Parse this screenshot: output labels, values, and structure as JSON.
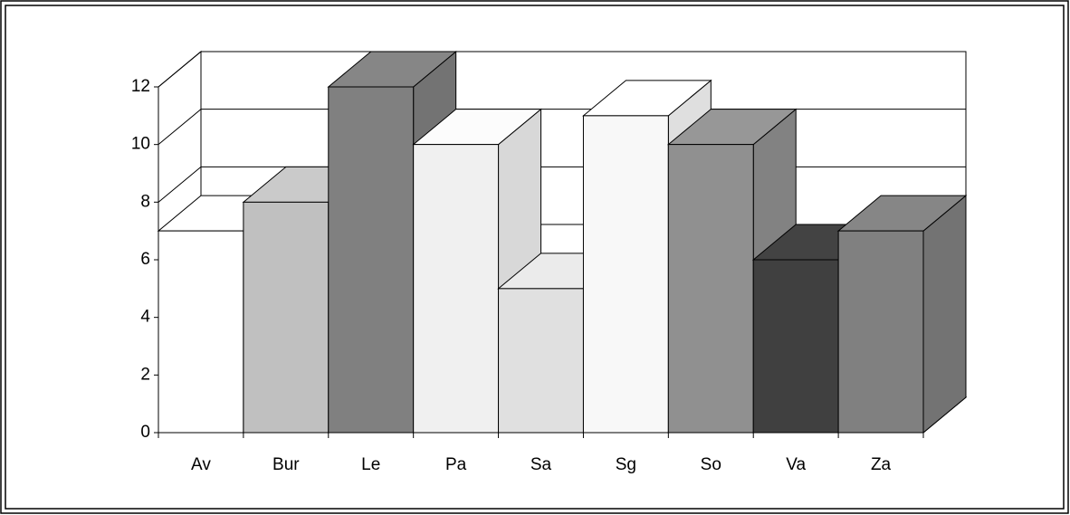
{
  "chart_data": {
    "type": "bar3d",
    "categories": [
      "Av",
      "Bur",
      "Le",
      "Pa",
      "Sa",
      "Sg",
      "So",
      "Va",
      "Za"
    ],
    "values": [
      7,
      8,
      12,
      10,
      5,
      11,
      10,
      6,
      7
    ],
    "colors": [
      "#ffffff",
      "#c0c0c0",
      "#808080",
      "#f0f0f0",
      "#e0e0e0",
      "#f8f8f8",
      "#909090",
      "#404040",
      "#808080"
    ],
    "ylim": [
      0,
      12
    ],
    "yticks": [
      0,
      2,
      4,
      6,
      8,
      10,
      12
    ],
    "grid": true
  }
}
